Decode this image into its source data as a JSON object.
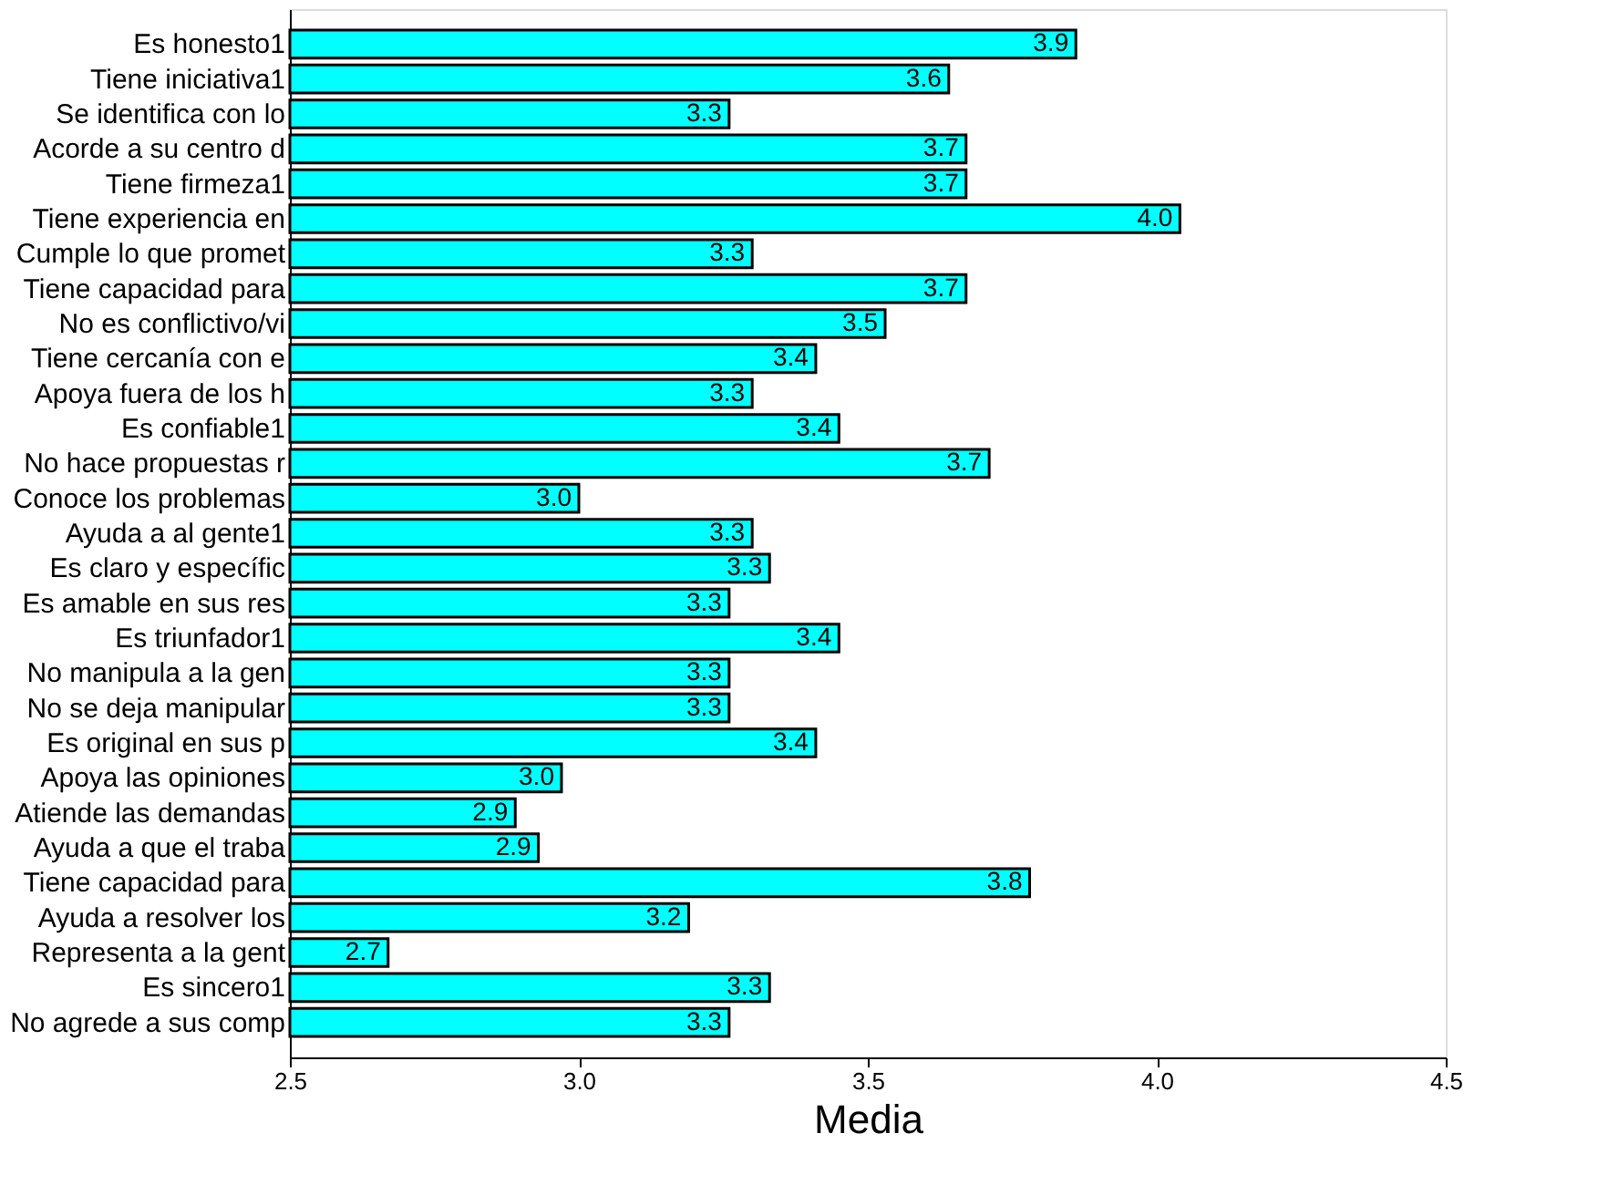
{
  "chart_data": {
    "type": "bar",
    "orientation": "horizontal",
    "xlabel": "Media",
    "categories": [
      "Es honesto1",
      "Tiene iniciativa1",
      "Se identifica con lo",
      "Acorde a su centro d",
      "Tiene firmeza1",
      "Tiene experiencia en",
      "Cumple lo que promet",
      "Tiene capacidad para",
      "No es conflictivo/vi",
      "Tiene cercanía con e",
      "Apoya fuera de los h",
      "Es confiable1",
      "No hace propuestas r",
      "Conoce los problemas",
      "Ayuda a al gente1",
      "Es claro y específic",
      "Es amable en sus res",
      "Es triunfador1",
      "No manipula a la gen",
      "No se deja manipular",
      "Es original en sus p",
      "Apoya las opiniones",
      "Atiende las demandas",
      "Ayuda a que el traba",
      "Tiene capacidad para",
      "Ayuda a resolver los",
      "Representa a la gent",
      "Es sincero1",
      "No agrede a sus comp"
    ],
    "values": [
      3.86,
      3.64,
      3.26,
      3.67,
      3.67,
      4.04,
      3.3,
      3.67,
      3.53,
      3.41,
      3.3,
      3.45,
      3.71,
      3.0,
      3.3,
      3.33,
      3.26,
      3.45,
      3.26,
      3.26,
      3.41,
      2.97,
      2.89,
      2.93,
      3.78,
      3.19,
      2.67,
      3.33,
      3.26
    ],
    "value_labels": [
      "3.9",
      "3.6",
      "3.3",
      "3.7",
      "3.7",
      "4.0",
      "3.3",
      "3.7",
      "3.5",
      "3.4",
      "3.3",
      "3.4",
      "3.7",
      "3.0",
      "3.3",
      "3.3",
      "3.3",
      "3.4",
      "3.3",
      "3.3",
      "3.4",
      "3.0",
      "2.9",
      "2.9",
      "3.8",
      "3.2",
      "2.7",
      "3.3",
      "3.3"
    ],
    "color": "#00ffff",
    "xlim": [
      2.5,
      4.5
    ],
    "xticks": [
      "2.5",
      "3.0",
      "3.5",
      "4.0",
      "4.5"
    ],
    "grid": false
  }
}
